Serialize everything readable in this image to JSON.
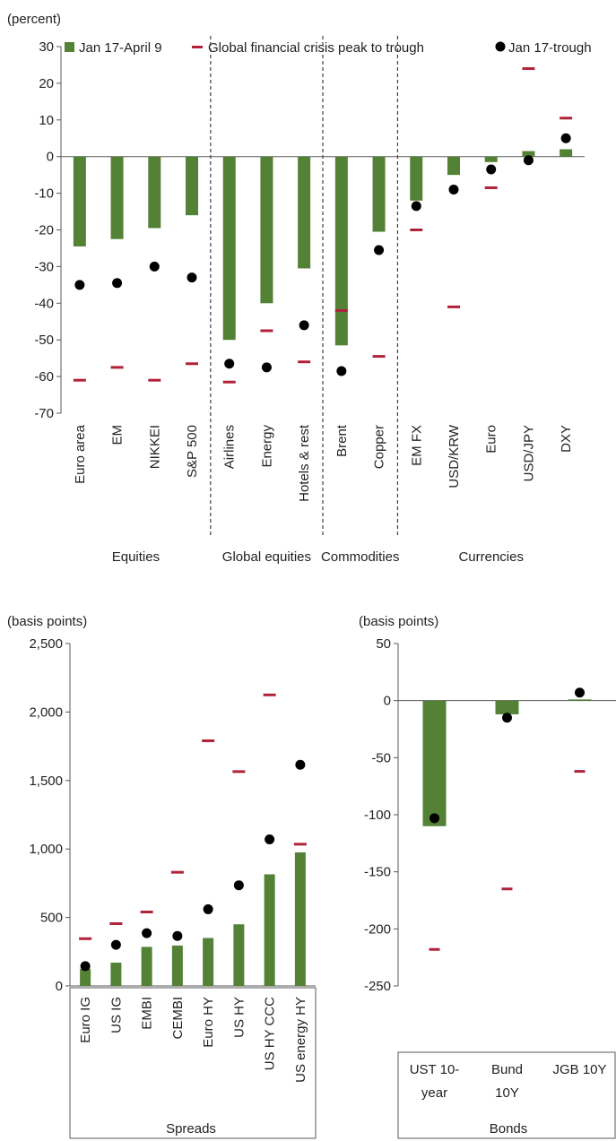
{
  "colors": {
    "bar": "#538135",
    "crisis": "#b0223a",
    "dot": "#000000",
    "axis": "#595959",
    "separator": "#404040"
  },
  "legend": {
    "bar_label": "Jan 17-April 9",
    "crisis_label": "Global financial crisis peak to trough",
    "dot_label": "Jan 17-trough"
  },
  "chart_data": [
    {
      "type": "bar",
      "unit_label": "(percent)",
      "ylim": [
        -70,
        30
      ],
      "yticks": [
        30,
        20,
        10,
        0,
        -10,
        -20,
        -30,
        -40,
        -50,
        -60,
        -70
      ],
      "categories": [
        "Euro area",
        "EM",
        "NIKKEI",
        "S&P 500",
        "Airlines",
        "Energy",
        "Hotels & rest",
        "Brent",
        "Copper",
        "EM FX",
        "USD/KRW",
        "Euro",
        "USD/JPY",
        "DXY"
      ],
      "groups": [
        {
          "label": "Equities",
          "start": 0,
          "end": 3
        },
        {
          "label": "Global equities",
          "start": 4,
          "end": 6
        },
        {
          "label": "Commodities",
          "start": 7,
          "end": 8
        },
        {
          "label": "Currencies",
          "start": 9,
          "end": 13
        }
      ],
      "series": [
        {
          "name": "Jan 17-April 9",
          "kind": "bar",
          "values": [
            -24.5,
            -22.5,
            -19.5,
            -16,
            -50,
            -40,
            -30.5,
            -51.5,
            -20.5,
            -12,
            -5,
            -1.5,
            1.5,
            2
          ]
        },
        {
          "name": "Global financial crisis peak to trough",
          "kind": "dash",
          "values": [
            -61,
            -57.5,
            -61,
            -56.5,
            -61.5,
            -47.5,
            -56,
            -42,
            -54.5,
            -20,
            -41,
            -8.5,
            24,
            10.5
          ]
        },
        {
          "name": "Jan 17-trough",
          "kind": "dot",
          "values": [
            -35,
            -34.5,
            -30,
            -33,
            -56.5,
            -57.5,
            -46,
            -58.5,
            -25.5,
            -13.5,
            -9,
            -3.5,
            -1,
            5
          ]
        }
      ]
    },
    {
      "type": "bar",
      "unit_label": "(basis points)",
      "ylim": [
        0,
        2500
      ],
      "yticks": [
        "2,500",
        "2,000",
        "1,500",
        "1,000",
        "500",
        "0"
      ],
      "ytick_values": [
        2500,
        2000,
        1500,
        1000,
        500,
        0
      ],
      "categories": [
        "Euro IG",
        "US IG",
        "EMBI",
        "CEMBI",
        "Euro HY",
        "US HY",
        "US HY CCC",
        "US energy HY"
      ],
      "group_label": "Spreads",
      "series": [
        {
          "name": "Jan 17-April 9",
          "kind": "bar",
          "values": [
            125,
            170,
            285,
            295,
            350,
            450,
            815,
            975
          ]
        },
        {
          "name": "Global financial crisis peak to trough",
          "kind": "dash",
          "values": [
            345,
            455,
            540,
            830,
            1790,
            1565,
            2125,
            1035
          ]
        },
        {
          "name": "Jan 17-trough",
          "kind": "dot",
          "values": [
            145,
            300,
            385,
            365,
            560,
            735,
            1070,
            1615
          ]
        }
      ]
    },
    {
      "type": "bar",
      "unit_label": "(basis points)",
      "ylim": [
        -250,
        50
      ],
      "yticks": [
        "50",
        "0",
        "-50",
        "-100",
        "-150",
        "-200",
        "-250"
      ],
      "ytick_values": [
        50,
        0,
        -50,
        -100,
        -150,
        -200,
        -250
      ],
      "categories": [
        "UST 10-year",
        "Bund 10Y",
        "JGB 10Y"
      ],
      "category_lines": [
        [
          "UST 10-",
          "year"
        ],
        [
          "Bund",
          "10Y"
        ],
        [
          "JGB 10Y"
        ]
      ],
      "group_label": "Bonds",
      "series": [
        {
          "name": "Jan 17-April 9",
          "kind": "bar",
          "values": [
            -110,
            -12,
            1
          ]
        },
        {
          "name": "Global financial crisis peak to trough",
          "kind": "dash",
          "values": [
            -218,
            -165,
            -62
          ]
        },
        {
          "name": "Jan 17-trough",
          "kind": "dot",
          "values": [
            -103,
            -15,
            7
          ]
        }
      ]
    }
  ]
}
